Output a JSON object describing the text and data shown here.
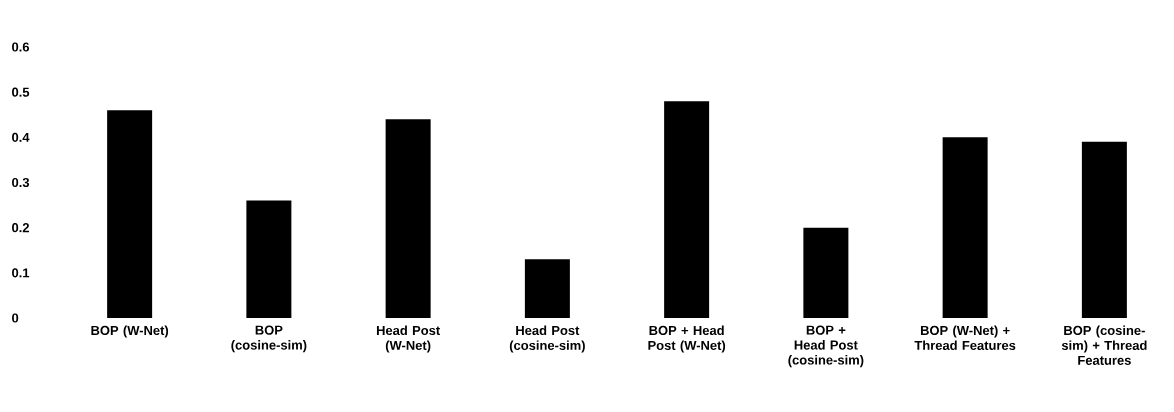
{
  "chart_data": {
    "type": "bar",
    "categories": [
      "BOP (W-Net)",
      "BOP (cosine-sim)",
      "Head Post (W-Net)",
      "Head Post (cosine-sim)",
      "BOP + Head Post (W-Net)",
      "BOP + Head Post (cosine-sim)",
      "BOP (W-Net) + Thread Features",
      "BOP (cosine-sim) + Thread Features"
    ],
    "values": [
      0.46,
      0.26,
      0.44,
      0.13,
      0.48,
      0.2,
      0.4,
      0.39
    ],
    "color": "#000000",
    "ylim": [
      0,
      0.6
    ],
    "yticks": [
      0,
      0.1,
      0.2,
      0.3,
      0.4,
      0.5,
      0.6
    ]
  }
}
